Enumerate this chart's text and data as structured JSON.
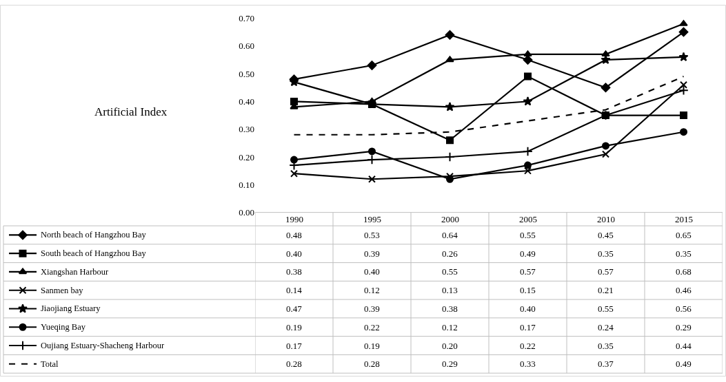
{
  "chart_data": {
    "type": "line",
    "annotations": [
      "Artificial Index"
    ],
    "categories": [
      "1990",
      "1995",
      "2000",
      "2005",
      "2010",
      "2015"
    ],
    "ylim": [
      0,
      0.7
    ],
    "yticks": [
      {
        "value": 0,
        "label": "0.00"
      },
      {
        "value": 0.1,
        "label": "0.10"
      },
      {
        "value": 0.2,
        "label": "0.20"
      },
      {
        "value": 0.3,
        "label": "0.30"
      },
      {
        "value": 0.4,
        "label": "0.40"
      },
      {
        "value": 0.5,
        "label": "0.50"
      },
      {
        "value": 0.6,
        "label": "0.60"
      },
      {
        "value": 0.7,
        "label": "0.70"
      }
    ],
    "grid": false,
    "legend": "bottom",
    "series": [
      {
        "name": "North beach of Hangzhou Bay",
        "color": "#000000",
        "marker": "diamond",
        "line_style": "solid",
        "values": [
          0.48,
          0.53,
          0.64,
          0.55,
          0.45,
          0.65
        ],
        "value_labels": [
          "0.48",
          "0.53",
          "0.64",
          "0.55",
          "0.45",
          "0.65"
        ]
      },
      {
        "name": "South beach of Hangzhou Bay",
        "color": "#000000",
        "marker": "square",
        "line_style": "solid",
        "values": [
          0.4,
          0.39,
          0.26,
          0.49,
          0.35,
          0.35
        ],
        "value_labels": [
          "0.40",
          "0.39",
          "0.26",
          "0.49",
          "0.35",
          "0.35"
        ]
      },
      {
        "name": "Xiangshan Harbour",
        "color": "#000000",
        "marker": "triangle",
        "line_style": "solid",
        "values": [
          0.38,
          0.4,
          0.55,
          0.57,
          0.57,
          0.68
        ],
        "value_labels": [
          "0.38",
          "0.40",
          "0.55",
          "0.57",
          "0.57",
          "0.68"
        ]
      },
      {
        "name": "Sanmen bay",
        "color": "#000000",
        "marker": "x",
        "line_style": "solid",
        "values": [
          0.14,
          0.12,
          0.13,
          0.15,
          0.21,
          0.46
        ],
        "value_labels": [
          "0.14",
          "0.12",
          "0.13",
          "0.15",
          "0.21",
          "0.46"
        ]
      },
      {
        "name": "Jiaojiang Estuary",
        "color": "#000000",
        "marker": "star",
        "line_style": "solid",
        "values": [
          0.47,
          0.39,
          0.38,
          0.4,
          0.55,
          0.56
        ],
        "value_labels": [
          "0.47",
          "0.39",
          "0.38",
          "0.40",
          "0.55",
          "0.56"
        ]
      },
      {
        "name": "Yueqing Bay",
        "color": "#000000",
        "marker": "circle",
        "line_style": "solid",
        "values": [
          0.19,
          0.22,
          0.12,
          0.17,
          0.24,
          0.29
        ],
        "value_labels": [
          "0.19",
          "0.22",
          "0.12",
          "0.17",
          "0.24",
          "0.29"
        ]
      },
      {
        "name": "Oujiang Estuary-Shacheng Harbour",
        "color": "#000000",
        "marker": "cross",
        "line_style": "solid",
        "values": [
          0.17,
          0.19,
          0.2,
          0.22,
          0.35,
          0.44
        ],
        "value_labels": [
          "0.17",
          "0.19",
          "0.20",
          "0.22",
          "0.35",
          "0.44"
        ]
      },
      {
        "name": "Total",
        "color": "#000000",
        "marker": "none",
        "line_style": "dashed",
        "values": [
          0.28,
          0.28,
          0.29,
          0.33,
          0.37,
          0.49
        ],
        "value_labels": [
          "0.28",
          "0.28",
          "0.29",
          "0.33",
          "0.37",
          "0.49"
        ]
      }
    ]
  }
}
